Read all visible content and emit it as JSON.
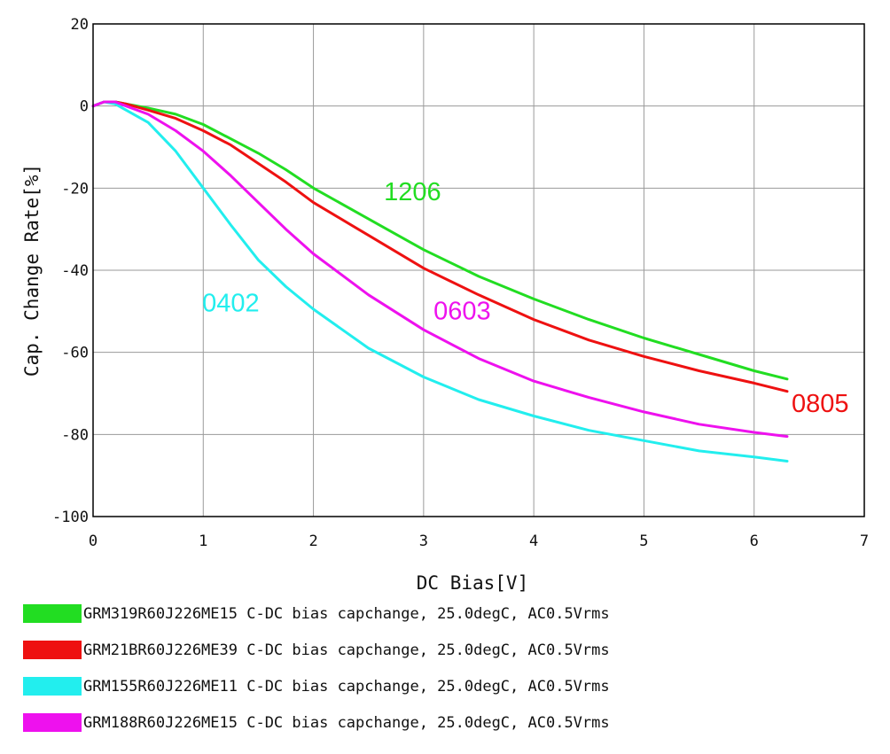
{
  "chart_data": {
    "type": "line",
    "title": "",
    "xlabel": "DC Bias[V]",
    "ylabel": "Cap. Change Rate[%]",
    "xlim": [
      0,
      7
    ],
    "ylim": [
      -100,
      20
    ],
    "xticks": [
      0,
      1,
      2,
      3,
      4,
      5,
      6,
      7
    ],
    "yticks": [
      20,
      0,
      -20,
      -40,
      -60,
      -80,
      -100
    ],
    "grid": true,
    "series": [
      {
        "name": "GRM319R60J226ME15 C-DC bias capchange, 25.0degC, AC0.5Vrms",
        "tag": "1206",
        "color": "#22dd22",
        "x": [
          0,
          0.1,
          0.2,
          0.3,
          0.5,
          0.75,
          1,
          1.25,
          1.5,
          1.75,
          2,
          2.5,
          3,
          3.5,
          4,
          4.5,
          5,
          5.5,
          6,
          6.3
        ],
        "y": [
          0,
          1,
          1,
          0.5,
          -0.5,
          -2,
          -4.5,
          -8,
          -11.5,
          -15.5,
          -20,
          -27.5,
          -35,
          -41.5,
          -47,
          -52,
          -56.5,
          -60.5,
          -64.5,
          -66.5
        ]
      },
      {
        "name": "GRM21BR60J226ME39 C-DC bias capchange, 25.0degC, AC0.5Vrms",
        "tag": "0805",
        "color": "#ee1111",
        "x": [
          0,
          0.1,
          0.2,
          0.3,
          0.5,
          0.75,
          1,
          1.25,
          1.5,
          1.75,
          2,
          2.5,
          3,
          3.5,
          4,
          4.5,
          5,
          5.5,
          6,
          6.3
        ],
        "y": [
          0,
          1,
          1,
          0.5,
          -1,
          -3,
          -6,
          -9.5,
          -14,
          -18.5,
          -23.5,
          -31.5,
          -39.5,
          -46,
          -52,
          -57,
          -61,
          -64.5,
          -67.5,
          -69.5
        ]
      },
      {
        "name": "GRM155R60J226ME11 C-DC bias capchange, 25.0degC, AC0.5Vrms",
        "tag": "0402",
        "color": "#22eeee",
        "x": [
          0,
          0.1,
          0.2,
          0.3,
          0.5,
          0.75,
          1,
          1.25,
          1.5,
          1.75,
          2,
          2.5,
          3,
          3.5,
          4,
          4.5,
          5,
          5.5,
          6,
          6.3
        ],
        "y": [
          0,
          1,
          0.5,
          -1,
          -4,
          -11,
          -20,
          -29,
          -37.5,
          -44,
          -49.5,
          -59,
          -66,
          -71.5,
          -75.5,
          -79,
          -81.5,
          -84,
          -85.5,
          -86.5
        ]
      },
      {
        "name": "GRM188R60J226ME15 C-DC bias capchange, 25.0degC, AC0.5Vrms",
        "tag": "0603",
        "color": "#ee11ee",
        "x": [
          0,
          0.1,
          0.2,
          0.3,
          0.5,
          0.75,
          1,
          1.25,
          1.5,
          1.75,
          2,
          2.5,
          3,
          3.5,
          4,
          4.5,
          5,
          5.5,
          6,
          6.3
        ],
        "y": [
          0,
          1,
          1,
          0,
          -2,
          -6,
          -11,
          -17,
          -23.5,
          -30,
          -36,
          -46,
          -54.5,
          -61.5,
          -67,
          -71,
          -74.5,
          -77.5,
          -79.5,
          -80.5
        ]
      }
    ],
    "annotations": [
      {
        "text": "1206",
        "color": "#22dd22",
        "x": 2.9,
        "y": -23
      },
      {
        "text": "0805",
        "color": "#ee1111",
        "x": 6.6,
        "y": -74.5
      },
      {
        "text": "0402",
        "color": "#22eeee",
        "x": 1.25,
        "y": -50
      },
      {
        "text": "0603",
        "color": "#ee11ee",
        "x": 3.35,
        "y": -52
      }
    ]
  }
}
